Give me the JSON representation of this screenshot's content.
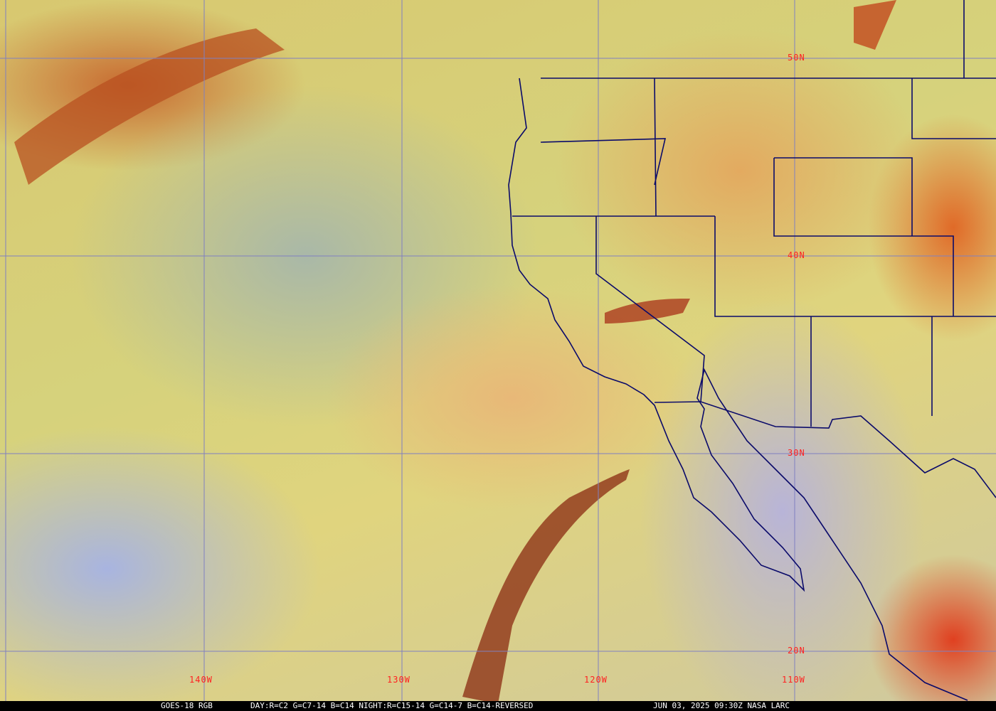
{
  "map": {
    "satellite_label": "GOES-18 RGB",
    "channels": "DAY:R=C2 G=C7-14 B=C14 NIGHT:R=C15-14 G=C14-7 B=C14-REVERSED",
    "timestamp": "JUN 03, 2025 09:30Z NASA LARC",
    "latitude_labels": [
      "50N",
      "40N",
      "30N",
      "20N"
    ],
    "longitude_labels": [
      "140W",
      "130W",
      "120W",
      "110W"
    ],
    "colors": {
      "grid": "#8080c0",
      "borders": "#0a0a6a",
      "labels": "#ff2020"
    }
  }
}
